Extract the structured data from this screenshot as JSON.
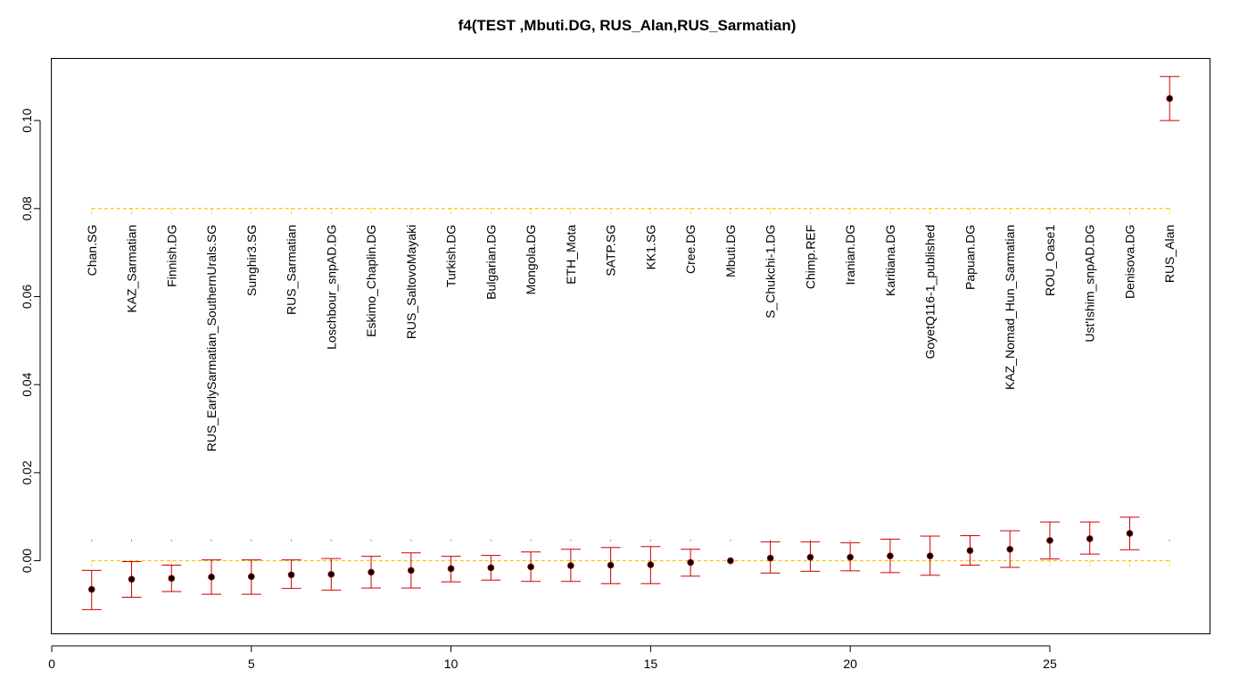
{
  "chart_data": {
    "type": "scatter",
    "title": "f4(TEST ,Mbuti.DG, RUS_Alan,RUS_Sarmatian)",
    "xlabel": "",
    "ylabel": "",
    "xlim": [
      0,
      29
    ],
    "ylim": [
      -0.0165,
      0.114
    ],
    "x_ticks": [
      0,
      5,
      10,
      15,
      20,
      25
    ],
    "x_tick_labels": [
      "0",
      "5",
      "10",
      "15",
      "20",
      "25"
    ],
    "y_ticks": [
      0.0,
      0.02,
      0.04,
      0.06,
      0.08,
      0.1
    ],
    "y_tick_labels": [
      "0.00",
      "0.02",
      "0.04",
      "0.06",
      "0.08",
      "0.10"
    ],
    "grid": false,
    "colors": {
      "errorbar": "#cc0000",
      "reference_line": "#f5c400",
      "point": "#000000",
      "point_edge": "#8b0000",
      "marker": "#8888cc"
    },
    "reference_lines": [
      0.0,
      0.08
    ],
    "series": [
      {
        "x": [
          1,
          2,
          3,
          4,
          5,
          6,
          7,
          8,
          9,
          10,
          11,
          12,
          13,
          14,
          15,
          16,
          17,
          18,
          19,
          20,
          21,
          22,
          23,
          24,
          25,
          26,
          27,
          28
        ],
        "labels": [
          "Chan.SG",
          "KAZ_Sarmatian",
          "Finnish.DG",
          "RUS_EarlySarmatian_SouthernUrals.SG",
          "Sunghir3.SG",
          "RUS_Sarmatian",
          "Loschbour_snpAD.DG",
          "Eskimo_Chaplin.DG",
          "RUS_SaltovoMayaki",
          "Turkish.DG",
          "Bulgarian.DG",
          "Mongola.DG",
          "ETH_Mota",
          "SATP.SG",
          "KK1.SG",
          "Cree.DG",
          "Mbuti.DG",
          "S_Chukchi-1.DG",
          "Chimp.REF",
          "Iranian.DG",
          "Karitiana.DG",
          "GoyetQ116-1_published",
          "Papuan.DG",
          "KAZ_Nomad_Hun_Sarmatian",
          "ROU_Oase1",
          "Ust'Ishim_snpAD.DG",
          "Denisova.DG",
          "RUS_Alan"
        ],
        "values": [
          -0.0065,
          -0.0042,
          -0.004,
          -0.0037,
          -0.0036,
          -0.0032,
          -0.0031,
          -0.0026,
          -0.0022,
          -0.0018,
          -0.0016,
          -0.0014,
          -0.0011,
          -0.001,
          -0.0009,
          -0.0004,
          0.0,
          0.0006,
          0.0008,
          0.0008,
          0.0011,
          0.0011,
          0.0023,
          0.0026,
          0.0046,
          0.005,
          0.0062,
          0.105
        ],
        "lower": [
          -0.0111,
          -0.0083,
          -0.007,
          -0.0076,
          -0.0076,
          -0.0063,
          -0.0067,
          -0.0062,
          -0.0062,
          -0.0048,
          -0.0044,
          -0.0047,
          -0.0047,
          -0.0052,
          -0.0052,
          -0.0035,
          0.0,
          -0.0028,
          -0.0024,
          -0.0023,
          -0.0027,
          -0.0033,
          -0.001,
          -0.0015,
          0.0004,
          0.0015,
          0.0025,
          0.1
        ],
        "upper": [
          -0.0022,
          -0.0002,
          -0.001,
          0.0002,
          0.0002,
          0.0002,
          0.0005,
          0.001,
          0.0018,
          0.001,
          0.0012,
          0.002,
          0.0026,
          0.003,
          0.0032,
          0.0026,
          0.0,
          0.0043,
          0.0043,
          0.0041,
          0.0049,
          0.0056,
          0.0057,
          0.0068,
          0.0088,
          0.0088,
          0.0099,
          0.11
        ]
      }
    ]
  }
}
